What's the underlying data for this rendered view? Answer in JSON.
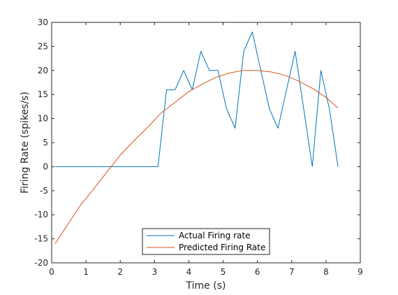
{
  "chart_data": {
    "type": "line",
    "title": "",
    "xlabel": "Time (s)",
    "ylabel": "Firing Rate (spikes/s)",
    "xlim": [
      0,
      9
    ],
    "ylim": [
      -20,
      30
    ],
    "xticks": [
      0,
      1,
      2,
      3,
      4,
      5,
      6,
      7,
      8,
      9
    ],
    "yticks": [
      -20,
      -15,
      -10,
      -5,
      0,
      5,
      10,
      15,
      20,
      25,
      30
    ],
    "grid": false,
    "legend_position": "bottom-center",
    "series": [
      {
        "name": "Actual Firing rate",
        "color": "#0072BD",
        "x": [
          0.1,
          0.35,
          0.6,
          0.85,
          1.1,
          1.35,
          1.6,
          1.85,
          2.1,
          2.35,
          2.6,
          2.85,
          3.1,
          3.35,
          3.6,
          3.85,
          4.1,
          4.35,
          4.6,
          4.85,
          5.1,
          5.35,
          5.6,
          5.85,
          6.1,
          6.35,
          6.6,
          6.85,
          7.1,
          7.35,
          7.6,
          7.85,
          8.1,
          8.35
        ],
        "y": [
          0,
          0,
          0,
          0,
          0,
          0,
          0,
          0,
          0,
          0,
          0,
          0,
          0,
          16,
          16,
          20,
          16,
          24,
          20,
          20,
          12,
          8,
          24,
          28,
          20,
          12,
          8,
          16,
          24,
          12,
          0,
          20,
          12,
          0
        ]
      },
      {
        "name": "Predicted Firing Rate",
        "color": "#D95319",
        "x": [
          0.1,
          0.5,
          0.85,
          1.2,
          1.6,
          2.0,
          2.4,
          2.8,
          3.2,
          3.6,
          4.0,
          4.4,
          4.8,
          5.2,
          5.6,
          6.0,
          6.4,
          6.8,
          7.2,
          7.6,
          8.0,
          8.35
        ],
        "y": [
          -16,
          -11.7,
          -7.9,
          -4.9,
          -1.2,
          2.4,
          5.4,
          8.2,
          11.2,
          13.4,
          15.6,
          17.2,
          18.6,
          19.5,
          20,
          20,
          19.7,
          19,
          17.8,
          16.3,
          14.4,
          12.2
        ]
      }
    ]
  }
}
